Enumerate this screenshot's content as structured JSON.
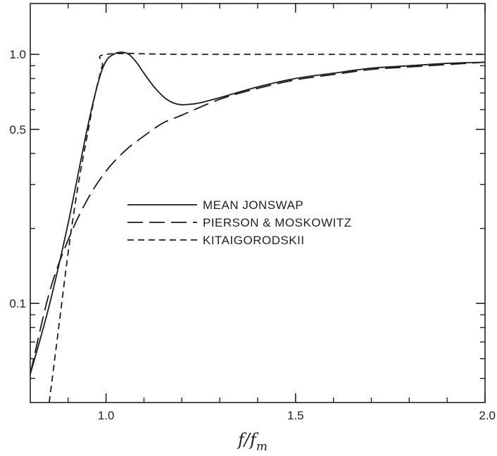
{
  "chart_data": {
    "type": "line",
    "title": "",
    "xlabel": {
      "main": "f/f",
      "sub": "m"
    },
    "ylabel": "",
    "xlim": [
      0.8,
      2.0
    ],
    "ylim": [
      0.04,
      1.6
    ],
    "yscale": "log",
    "grid": false,
    "legend_placement": "center",
    "x_ticks": [
      {
        "value": 1.0,
        "label": "1.0"
      },
      {
        "value": 1.5,
        "label": "1.5"
      },
      {
        "value": 2.0,
        "label": "2.0"
      }
    ],
    "y_ticks": [
      {
        "value": 0.1,
        "label": "0.1"
      },
      {
        "value": 0.5,
        "label": "0.5"
      },
      {
        "value": 1.0,
        "label": "1.0"
      }
    ],
    "y_minor_ticks": [
      0.05,
      0.06,
      0.07,
      0.08,
      0.09,
      0.2,
      0.3,
      0.4,
      0.6,
      0.7,
      0.8,
      0.9
    ],
    "x_minor_ticks": [
      0.9,
      1.1,
      1.2,
      1.3,
      1.4,
      1.6,
      1.7,
      1.8,
      1.9
    ],
    "series": [
      {
        "name": "MEAN JONSWAP",
        "style": "solid",
        "x": [
          0.8,
          0.85,
          0.9,
          0.95,
          0.98,
          1.0,
          1.02,
          1.04,
          1.06,
          1.08,
          1.1,
          1.13,
          1.16,
          1.19,
          1.22,
          1.25,
          1.3,
          1.4,
          1.5,
          1.6,
          1.7,
          1.8,
          1.9,
          2.0
        ],
        "values": [
          0.052,
          0.098,
          0.21,
          0.5,
          0.78,
          0.94,
          1.0,
          1.02,
          1.0,
          0.93,
          0.84,
          0.73,
          0.66,
          0.63,
          0.63,
          0.64,
          0.67,
          0.74,
          0.8,
          0.84,
          0.88,
          0.9,
          0.92,
          0.93
        ]
      },
      {
        "name": "PIERSON & MOSKOWITZ",
        "style": "long-dash",
        "x": [
          0.8,
          0.85,
          0.9,
          0.95,
          1.0,
          1.05,
          1.1,
          1.15,
          1.2,
          1.3,
          1.4,
          1.5,
          1.6,
          1.7,
          1.8,
          1.9,
          2.0
        ],
        "values": [
          0.052,
          0.11,
          0.18,
          0.26,
          0.34,
          0.41,
          0.47,
          0.53,
          0.57,
          0.66,
          0.73,
          0.79,
          0.83,
          0.87,
          0.89,
          0.91,
          0.93
        ]
      },
      {
        "name": "KITAIGORODSKII",
        "style": "short-dash",
        "x": [
          0.85,
          0.875,
          0.9,
          0.925,
          0.95,
          0.97,
          0.99,
          1.0,
          1.2,
          1.5,
          2.0
        ],
        "values": [
          0.04,
          0.08,
          0.16,
          0.29,
          0.47,
          0.68,
          0.9,
          1.0,
          1.0,
          1.0,
          1.0
        ]
      }
    ]
  }
}
